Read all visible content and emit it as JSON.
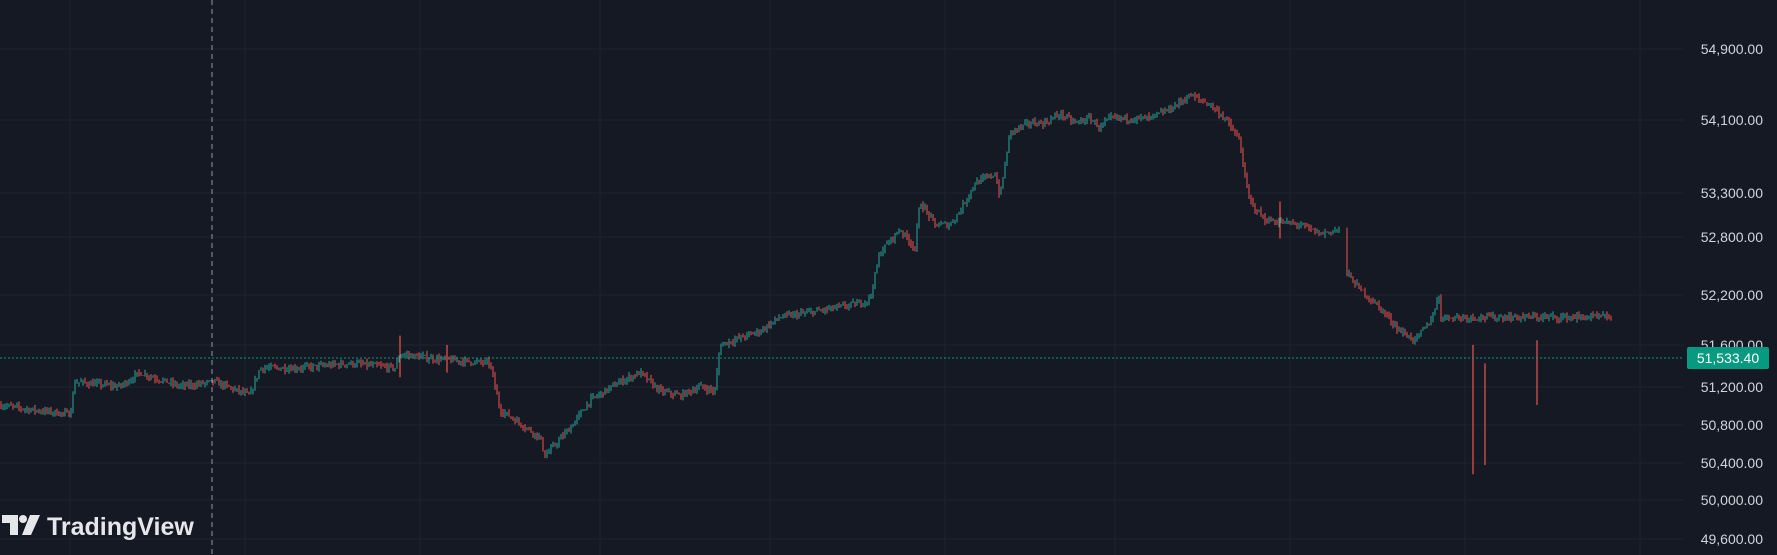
{
  "app": {
    "watermark": "TradingView"
  },
  "price_axis": {
    "ticks": [
      "54,900.00",
      "54,100.00",
      "53,300.00",
      "52,800.00",
      "52,200.00",
      "51,600.00",
      "51,200.00",
      "50,800.00",
      "50,400.00",
      "50,000.00",
      "49,600.00"
    ],
    "last_price": "51,533.40",
    "last_price_value": 51533.4
  },
  "colors": {
    "background": "#151924",
    "grid": "#1f2331",
    "up": "#26a69a",
    "down": "#ef5350",
    "axis_text": "#d1d4dc",
    "tag": "#089981"
  },
  "chart_data": {
    "type": "candlestick",
    "ylim": [
      49500,
      55400
    ],
    "last_price": 51533.4,
    "price_path": [
      [
        0,
        51050
      ],
      [
        30,
        51000
      ],
      [
        70,
        50950
      ],
      [
        75,
        51300
      ],
      [
        120,
        51250
      ],
      [
        140,
        51400
      ],
      [
        180,
        51250
      ],
      [
        215,
        51300
      ],
      [
        250,
        51150
      ],
      [
        260,
        51450
      ],
      [
        300,
        51450
      ],
      [
        350,
        51500
      ],
      [
        395,
        51450
      ],
      [
        400,
        51600
      ],
      [
        435,
        51550
      ],
      [
        490,
        51500
      ],
      [
        500,
        51000
      ],
      [
        540,
        50700
      ],
      [
        545,
        50500
      ],
      [
        570,
        50800
      ],
      [
        590,
        51100
      ],
      [
        620,
        51300
      ],
      [
        640,
        51400
      ],
      [
        660,
        51200
      ],
      [
        680,
        51150
      ],
      [
        700,
        51250
      ],
      [
        715,
        51200
      ],
      [
        720,
        51700
      ],
      [
        760,
        51850
      ],
      [
        780,
        52000
      ],
      [
        810,
        52050
      ],
      [
        860,
        52150
      ],
      [
        870,
        52200
      ],
      [
        880,
        52700
      ],
      [
        900,
        52950
      ],
      [
        915,
        52750
      ],
      [
        920,
        53250
      ],
      [
        935,
        53000
      ],
      [
        950,
        53000
      ],
      [
        960,
        53150
      ],
      [
        975,
        53450
      ],
      [
        995,
        53550
      ],
      [
        1000,
        53300
      ],
      [
        1010,
        54000
      ],
      [
        1030,
        54100
      ],
      [
        1045,
        54100
      ],
      [
        1060,
        54200
      ],
      [
        1075,
        54100
      ],
      [
        1090,
        54150
      ],
      [
        1100,
        54050
      ],
      [
        1110,
        54150
      ],
      [
        1150,
        54150
      ],
      [
        1170,
        54250
      ],
      [
        1190,
        54400
      ],
      [
        1210,
        54300
      ],
      [
        1225,
        54150
      ],
      [
        1240,
        53900
      ],
      [
        1245,
        53500
      ],
      [
        1250,
        53250
      ],
      [
        1265,
        53050
      ],
      [
        1300,
        53000
      ],
      [
        1320,
        52900
      ],
      [
        1340,
        52950
      ],
      [
        1345,
        52500
      ],
      [
        1360,
        52300
      ],
      [
        1380,
        52100
      ],
      [
        1400,
        51850
      ],
      [
        1415,
        51750
      ],
      [
        1430,
        51950
      ],
      [
        1440,
        52250
      ],
      [
        1415,
        51750
      ],
      [
        1420,
        51750
      ],
      [
        1430,
        51950
      ],
      [
        1410,
        52000
      ]
    ]
  }
}
